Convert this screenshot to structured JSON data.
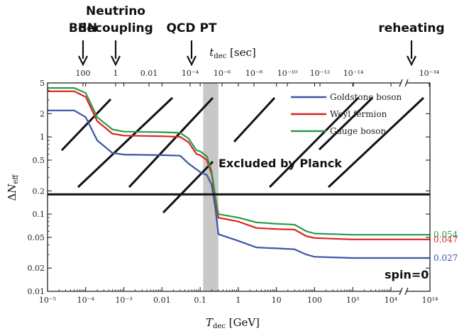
{
  "chart_data": {
    "type": "line",
    "xlabel": "T_dec [GeV]",
    "ylabel": "ΔN_eff",
    "top_xlabel": "t_dec [sec]",
    "x_scale": "log",
    "y_scale": "log",
    "xlim": [
      1e-05,
      100000000000000.0
    ],
    "ylim": [
      0.01,
      5
    ],
    "grid": false,
    "legend_position": "top-right",
    "x_ticks": [
      "10⁻⁵",
      "10⁻⁴",
      "10⁻³",
      "0.01",
      "0.1",
      "1",
      "10",
      "100",
      "10³",
      "10⁴",
      "10¹⁴"
    ],
    "y_ticks": [
      "0.01",
      "0.02",
      "0.05",
      "0.1",
      "0.2",
      "0.5",
      "1",
      "2",
      "5"
    ],
    "top_ticks": [
      "100",
      "1",
      "0.01",
      "10⁻⁴",
      "10⁻⁶",
      "10⁻⁸",
      "10⁻¹⁰",
      "10⁻¹²",
      "10⁻¹⁴",
      "10⁻³⁴"
    ],
    "events": [
      {
        "label": "BBN",
        "T": 0.0001
      },
      {
        "label": "Neutrino\ndecoupling",
        "T": 0.001
      },
      {
        "label": "QCD PT",
        "T": 0.2
      },
      {
        "label": "reheating",
        "T": 30000000000000.0
      }
    ],
    "excluded_label": "Excluded by Planck",
    "planck_limit": 0.18,
    "qcd_band": [
      0.12,
      0.3
    ],
    "annotation": "spin=0",
    "series": [
      {
        "name": "Goldstone boson",
        "color": "#3a55a8",
        "end_label": "0.027",
        "points": [
          [
            1e-05,
            2.2
          ],
          [
            5e-05,
            2.2
          ],
          [
            0.0001,
            1.8
          ],
          [
            0.0002,
            0.9
          ],
          [
            0.0005,
            0.62
          ],
          [
            0.001,
            0.59
          ],
          [
            0.01,
            0.58
          ],
          [
            0.03,
            0.57
          ],
          [
            0.05,
            0.45
          ],
          [
            0.1,
            0.35
          ],
          [
            0.15,
            0.32
          ],
          [
            0.2,
            0.24
          ],
          [
            0.25,
            0.12
          ],
          [
            0.3,
            0.055
          ],
          [
            1,
            0.045
          ],
          [
            3,
            0.037
          ],
          [
            10,
            0.036
          ],
          [
            30,
            0.035
          ],
          [
            60,
            0.03
          ],
          [
            100,
            0.028
          ],
          [
            1000,
            0.027
          ],
          [
            100000000000000.0,
            0.027
          ]
        ]
      },
      {
        "name": "Weyl fermion",
        "color": "#e02020",
        "end_label": "0.047",
        "points": [
          [
            1e-05,
            3.9
          ],
          [
            5e-05,
            3.9
          ],
          [
            0.0001,
            3.3
          ],
          [
            0.0002,
            1.6
          ],
          [
            0.0005,
            1.1
          ],
          [
            0.001,
            1.04
          ],
          [
            0.01,
            1.02
          ],
          [
            0.03,
            1.0
          ],
          [
            0.05,
            0.85
          ],
          [
            0.08,
            0.6
          ],
          [
            0.1,
            0.58
          ],
          [
            0.15,
            0.5
          ],
          [
            0.2,
            0.33
          ],
          [
            0.25,
            0.15
          ],
          [
            0.3,
            0.09
          ],
          [
            1,
            0.08
          ],
          [
            3,
            0.066
          ],
          [
            10,
            0.064
          ],
          [
            30,
            0.063
          ],
          [
            60,
            0.052
          ],
          [
            100,
            0.049
          ],
          [
            1000,
            0.047
          ],
          [
            100000000000000.0,
            0.047
          ]
        ]
      },
      {
        "name": "Gauge boson",
        "color": "#2a9a4a",
        "end_label": "0.054",
        "points": [
          [
            1e-05,
            4.3
          ],
          [
            5e-05,
            4.3
          ],
          [
            0.0001,
            3.7
          ],
          [
            0.0002,
            1.8
          ],
          [
            0.0005,
            1.25
          ],
          [
            0.001,
            1.17
          ],
          [
            0.01,
            1.15
          ],
          [
            0.03,
            1.13
          ],
          [
            0.05,
            0.95
          ],
          [
            0.08,
            0.67
          ],
          [
            0.1,
            0.65
          ],
          [
            0.15,
            0.56
          ],
          [
            0.2,
            0.36
          ],
          [
            0.25,
            0.17
          ],
          [
            0.3,
            0.1
          ],
          [
            1,
            0.09
          ],
          [
            3,
            0.078
          ],
          [
            10,
            0.075
          ],
          [
            30,
            0.073
          ],
          [
            60,
            0.06
          ],
          [
            100,
            0.056
          ],
          [
            1000,
            0.054
          ],
          [
            100000000000000.0,
            0.054
          ]
        ]
      }
    ]
  }
}
